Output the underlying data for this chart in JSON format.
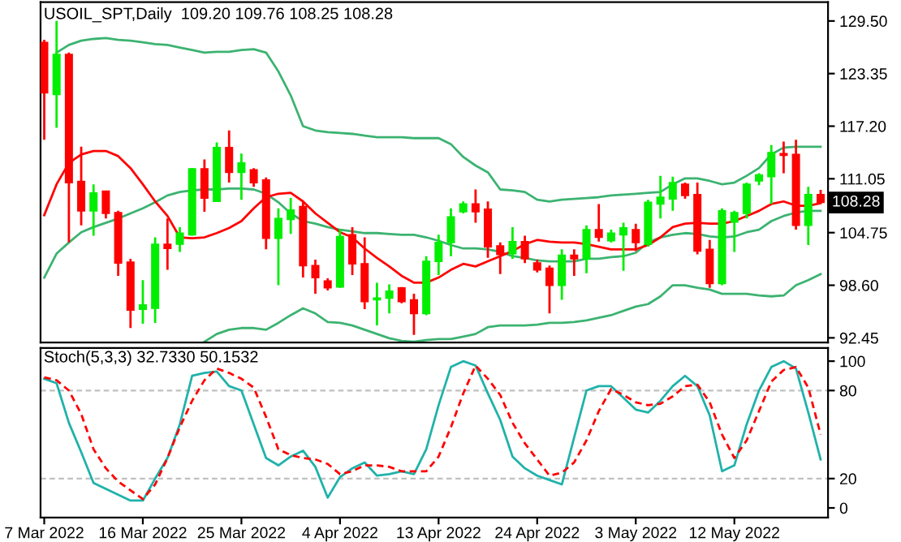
{
  "chart_data": [
    {
      "type": "candlestick",
      "title": "USOIL_SPT,Daily  109.20 109.76 108.25 108.28",
      "categories": [
        null,
        null,
        null,
        null,
        null,
        null,
        null,
        null,
        null,
        null,
        null,
        null,
        null,
        null,
        null,
        null,
        null,
        null,
        null,
        null,
        null,
        null,
        null,
        null,
        null,
        null,
        null,
        null,
        null,
        null,
        null,
        null,
        null,
        null,
        null,
        null,
        null,
        null,
        null,
        null,
        null,
        null,
        null,
        null,
        null,
        null,
        null,
        null,
        null,
        null,
        null,
        null,
        null,
        null,
        null,
        null,
        null,
        null,
        null,
        null,
        null,
        null,
        null,
        null
      ],
      "ohlc": [
        [
          127.0,
          127.3,
          115.6,
          121.1
        ],
        [
          120.9,
          129.5,
          117.0,
          125.6
        ],
        [
          125.6,
          125.8,
          103.6,
          110.6
        ],
        [
          110.75,
          114.8,
          105.6,
          107.3
        ],
        [
          107.3,
          110.4,
          104.4,
          109.4
        ],
        [
          109.6,
          109.6,
          106.4,
          107.0
        ],
        [
          107.1,
          107.3,
          99.7,
          101.2
        ],
        [
          101.3,
          101.7,
          93.6,
          95.7
        ],
        [
          95.8,
          99.2,
          94.1,
          96.3
        ],
        [
          95.9,
          104.2,
          94.2,
          103.4
        ],
        [
          103.4,
          106.4,
          100.4,
          102.9
        ],
        [
          103.4,
          105.4,
          102.5,
          104.7
        ],
        [
          104.5,
          112.3,
          104.4,
          112.2
        ],
        [
          112.2,
          113.3,
          107.2,
          108.8
        ],
        [
          108.4,
          115.3,
          108.4,
          114.7
        ],
        [
          114.7,
          116.7,
          110.6,
          111.8
        ],
        [
          111.8,
          114.0,
          108.6,
          112.9
        ],
        [
          112.1,
          112.3,
          110.1,
          110.6
        ],
        [
          110.9,
          111.2,
          102.8,
          104.1
        ],
        [
          104.1,
          107.6,
          98.6,
          106.4
        ],
        [
          106.3,
          108.8,
          104.6,
          107.4
        ],
        [
          107.8,
          108.3,
          99.5,
          100.9
        ],
        [
          100.9,
          101.6,
          97.6,
          99.5
        ],
        [
          99.1,
          99.4,
          98.0,
          98.3
        ],
        [
          98.4,
          105.1,
          98.3,
          104.3
        ],
        [
          104.5,
          105.4,
          99.8,
          101.1
        ],
        [
          101.1,
          104.2,
          95.8,
          96.7
        ],
        [
          96.9,
          98.9,
          93.9,
          97.1
        ],
        [
          97.1,
          98.7,
          95.3,
          97.9
        ],
        [
          98.3,
          98.4,
          96.5,
          96.7
        ],
        [
          96.9,
          97.6,
          92.8,
          95.3
        ],
        [
          95.3,
          102.0,
          95.1,
          101.4
        ],
        [
          101.4,
          104.5,
          99.8,
          103.6
        ],
        [
          103.6,
          107.6,
          102.0,
          106.6
        ],
        [
          107.2,
          108.4,
          107.0,
          108.1
        ],
        [
          108.1,
          109.8,
          105.9,
          107.2
        ],
        [
          107.5,
          108.4,
          101.8,
          103.1
        ],
        [
          103.2,
          103.6,
          99.9,
          102.2
        ],
        [
          102.3,
          105.4,
          101.7,
          103.7
        ],
        [
          103.7,
          104.4,
          101.2,
          101.7
        ],
        [
          101.2,
          101.6,
          100.1,
          100.4
        ],
        [
          100.6,
          100.9,
          95.3,
          98.6
        ],
        [
          98.6,
          102.8,
          96.9,
          102.1
        ],
        [
          102.1,
          102.8,
          99.7,
          101.7
        ],
        [
          101.7,
          105.6,
          100.0,
          105.1
        ],
        [
          105.1,
          108.1,
          103.7,
          104.2
        ],
        [
          103.8,
          105.1,
          103.6,
          104.7
        ],
        [
          104.5,
          105.9,
          100.3,
          105.3
        ],
        [
          105.1,
          105.8,
          102.6,
          103.6
        ],
        [
          103.4,
          108.6,
          103.1,
          108.3
        ],
        [
          108.1,
          111.4,
          106.4,
          108.9
        ],
        [
          108.7,
          111.3,
          107.3,
          110.6
        ],
        [
          110.4,
          110.6,
          108.7,
          109.1
        ],
        [
          109.2,
          110.6,
          102.2,
          102.6
        ],
        [
          102.8,
          103.9,
          98.3,
          98.8
        ],
        [
          98.8,
          107.6,
          98.6,
          107.3
        ],
        [
          106.0,
          107.3,
          102.5,
          107.1
        ],
        [
          107.0,
          110.6,
          106.4,
          110.4
        ],
        [
          110.8,
          111.7,
          110.3,
          111.5
        ],
        [
          111.3,
          115.0,
          108.1,
          114.1
        ],
        [
          114.0,
          115.4,
          111.7,
          113.8
        ],
        [
          113.9,
          115.6,
          105.1,
          105.6
        ],
        [
          105.6,
          110.1,
          103.3,
          109.2
        ],
        [
          109.2,
          109.76,
          108.25,
          108.28
        ]
      ],
      "colors": [
        "#ff0000",
        "#00ee00",
        "#ff0000",
        "#ff0000",
        "#00ee00",
        "#ff0000",
        "#ff0000",
        "#ff0000",
        "#00ee00",
        "#00ee00",
        "#ff0000",
        "#00ee00",
        "#00ee00",
        "#ff0000",
        "#00ee00",
        "#ff0000",
        "#00ee00",
        "#ff0000",
        "#ff0000",
        "#00ee00",
        "#00ee00",
        "#ff0000",
        "#ff0000",
        "#ff0000",
        "#00ee00",
        "#ff0000",
        "#ff0000",
        "#00ee00",
        "#00ee00",
        "#ff0000",
        "#ff0000",
        "#00ee00",
        "#00ee00",
        "#00ee00",
        "#00ee00",
        "#ff0000",
        "#ff0000",
        "#ff0000",
        "#00ee00",
        "#ff0000",
        "#ff0000",
        "#ff0000",
        "#00ee00",
        "#ff0000",
        "#00ee00",
        "#ff0000",
        "#00ee00",
        "#00ee00",
        "#ff0000",
        "#00ee00",
        "#00ee00",
        "#00ee00",
        "#ff0000",
        "#ff0000",
        "#ff0000",
        "#00ee00",
        "#00ee00",
        "#00ee00",
        "#00ee00",
        "#00ee00",
        "#ff0000",
        "#ff0000",
        "#00ee00",
        "#ff0000"
      ],
      "series": [
        {
          "type": "line",
          "color": "#3cb371",
          "values": [
            null,
            125.8,
            126.7,
            127.2,
            127.4,
            127.5,
            127.3,
            127.2,
            127.0,
            126.8,
            126.7,
            126.4,
            126.1,
            125.8,
            125.9,
            125.9,
            126.1,
            126.2,
            125.8,
            123.6,
            120.8,
            117.2,
            116.7,
            116.5,
            116.4,
            116.3,
            116.1,
            115.9,
            115.9,
            115.9,
            115.8,
            115.8,
            115.8,
            115.1,
            113.6,
            112.6,
            111.8,
            109.8,
            109.7,
            109.5,
            108.6,
            108.4,
            108.6,
            108.7,
            108.8,
            108.9,
            109.1,
            109.2,
            109.3,
            109.4,
            109.5,
            110.4,
            111.1,
            111.1,
            110.8,
            110.4,
            110.6,
            111.4,
            112.3,
            113.9,
            114.7,
            114.8,
            114.8,
            114.8
          ]
        },
        {
          "type": "line",
          "color": "#3cb371",
          "values": [
            99.5,
            102.3,
            103.6,
            104.8,
            105.4,
            105.9,
            106.4,
            107.0,
            107.6,
            108.3,
            109.1,
            109.5,
            109.7,
            109.8,
            109.8,
            109.9,
            109.9,
            109.8,
            109.3,
            108.3,
            107.0,
            106.1,
            105.8,
            105.4,
            105.1,
            104.9,
            104.7,
            104.7,
            104.6,
            104.5,
            104.5,
            104.2,
            103.8,
            103.3,
            102.9,
            102.9,
            102.8,
            102.5,
            102.0,
            101.8,
            101.5,
            101.4,
            101.4,
            101.4,
            101.7,
            101.7,
            101.9,
            102.0,
            102.4,
            103.6,
            104.2,
            104.5,
            104.7,
            104.6,
            104.3,
            104.2,
            104.3,
            104.8,
            105.1,
            106.1,
            106.7,
            107.1,
            107.3,
            107.3
          ]
        },
        {
          "type": "line",
          "color": "#3cb371",
          "values": [
            null,
            null,
            null,
            null,
            null,
            null,
            null,
            null,
            null,
            null,
            null,
            null,
            null,
            92.0,
            92.9,
            93.4,
            93.6,
            93.6,
            93.4,
            94.2,
            95.1,
            95.9,
            95.3,
            94.3,
            94.2,
            93.9,
            93.4,
            92.9,
            92.4,
            92.1,
            92.0,
            92.2,
            92.3,
            92.3,
            92.6,
            92.9,
            93.7,
            93.9,
            93.9,
            93.9,
            94.0,
            94.2,
            94.2,
            94.3,
            94.5,
            94.8,
            95.1,
            95.6,
            96.1,
            96.4,
            97.3,
            98.6,
            98.6,
            98.3,
            98.1,
            97.6,
            97.6,
            97.6,
            97.4,
            97.3,
            97.4,
            98.6,
            99.2,
            99.9
          ]
        },
        {
          "type": "line",
          "color": "#ff0000",
          "values": [
            106.8,
            110.4,
            112.9,
            113.9,
            114.3,
            114.3,
            113.7,
            112.3,
            110.4,
            108.4,
            106.7,
            104.2,
            104.1,
            104.2,
            104.7,
            105.3,
            106.1,
            107.6,
            108.9,
            109.3,
            109.4,
            108.4,
            107.0,
            105.9,
            104.8,
            104.2,
            102.9,
            101.8,
            100.8,
            99.7,
            98.9,
            98.9,
            99.5,
            100.4,
            101.1,
            100.8,
            101.4,
            102.0,
            102.6,
            103.4,
            103.9,
            103.7,
            103.6,
            103.6,
            103.4,
            103.1,
            102.8,
            102.8,
            102.8,
            103.3,
            104.2,
            105.4,
            105.8,
            105.9,
            105.8,
            105.8,
            106.1,
            106.7,
            107.3,
            108.1,
            108.4,
            107.9,
            107.9,
            108.2
          ]
        }
      ],
      "ylim": [
        91.9,
        131.7
      ],
      "yticks": [
        {
          "value": 92.45,
          "label": "92.45"
        },
        {
          "value": 98.6,
          "label": "98.60"
        },
        {
          "value": 104.75,
          "label": "104.75"
        },
        {
          "value": 111.05,
          "label": "111.05"
        },
        {
          "value": 117.2,
          "label": "117.20"
        },
        {
          "value": 123.35,
          "label": "123.35"
        },
        {
          "value": 129.5,
          "label": "129.50"
        }
      ],
      "annotations": [
        {
          "text": "108.28",
          "y": 108.28
        }
      ],
      "tick_labels": "y"
    },
    {
      "type": "line",
      "title": "Stoch(5,3,3) 32.7330 50.1532",
      "categories": [
        "7 Mar 2022",
        null,
        null,
        null,
        null,
        null,
        null,
        null,
        "16 Mar 2022",
        null,
        null,
        null,
        null,
        null,
        null,
        null,
        "25 Mar 2022",
        null,
        null,
        null,
        null,
        null,
        null,
        null,
        "4 Apr 2022",
        null,
        null,
        null,
        null,
        null,
        null,
        null,
        "13 Apr 2022",
        null,
        null,
        null,
        null,
        null,
        null,
        null,
        "24 Apr 2022",
        null,
        null,
        null,
        null,
        null,
        null,
        null,
        "3 May 2022",
        null,
        null,
        null,
        null,
        null,
        null,
        null,
        "12 May 2022",
        null,
        null,
        null,
        null,
        null,
        null,
        null
      ],
      "series": [
        {
          "color": "#20b2aa",
          "line_style": "solid",
          "values": [
            88,
            85,
            58,
            38,
            17,
            13,
            9,
            5,
            5,
            20,
            34,
            57,
            90,
            92,
            93,
            83,
            80,
            57,
            34,
            29,
            35,
            39,
            28,
            7,
            21,
            27,
            31,
            22,
            23,
            25,
            23,
            40,
            70,
            96,
            100,
            97,
            78,
            60,
            35,
            27,
            22,
            19,
            16,
            48,
            80,
            83,
            83,
            75,
            67,
            65,
            73,
            83,
            90,
            83,
            63,
            25,
            29,
            57,
            80,
            96,
            100,
            95,
            65,
            33
          ]
        },
        {
          "color": "#ff0000",
          "line_style": "dashed",
          "values": [
            89,
            87,
            80,
            64,
            40,
            27,
            18,
            12,
            6,
            16,
            34,
            55,
            73,
            87,
            95,
            92,
            88,
            82,
            62,
            40,
            36,
            34,
            33,
            30,
            23,
            25,
            29,
            29,
            28,
            25,
            25,
            25,
            35,
            55,
            78,
            97,
            88,
            77,
            58,
            44,
            33,
            22,
            24,
            31,
            46,
            66,
            81,
            77,
            72,
            70,
            71,
            76,
            83,
            84,
            72,
            50,
            34,
            46,
            66,
            86,
            94,
            96,
            82,
            50
          ]
        }
      ],
      "ylim": [
        -6.6,
        109
      ],
      "yticks": [
        0,
        20,
        80,
        100
      ],
      "ref_lines": [
        {
          "axis": "y",
          "value": 20,
          "color": "#c0c0c0",
          "line_style": "dashed"
        },
        {
          "axis": "y",
          "value": 80,
          "color": "#c0c0c0",
          "line_style": "dashed"
        }
      ]
    }
  ]
}
